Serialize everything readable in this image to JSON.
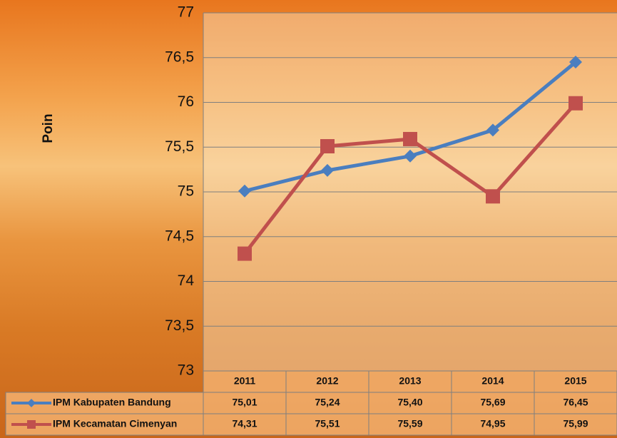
{
  "chart_data": {
    "type": "line",
    "y_label": "Poin",
    "categories": [
      "2011",
      "2012",
      "2013",
      "2014",
      "2015"
    ],
    "series": [
      {
        "name": "IPM Kabupaten Bandung",
        "color": "#4a7ebf",
        "marker": "diamond",
        "values": [
          75.01,
          75.24,
          75.4,
          75.69,
          76.45
        ],
        "value_labels": [
          "75,01",
          "75,24",
          "75,40",
          "75,69",
          "76,45"
        ]
      },
      {
        "name": "IPM Kecamatan Cimenyan",
        "color": "#c0504d",
        "marker": "square",
        "values": [
          74.31,
          75.51,
          75.59,
          74.95,
          75.99
        ],
        "value_labels": [
          "74,31",
          "75,51",
          "75,59",
          "74,95",
          "75,99"
        ]
      }
    ],
    "ylim": [
      73,
      77
    ],
    "yticks": [
      73,
      {
        "value": 73.5,
        "label": "73,5"
      },
      74,
      {
        "value": 74.5,
        "label": "74,5"
      },
      75,
      {
        "value": 75.5,
        "label": "75,5"
      },
      76,
      {
        "value": 76.5,
        "label": "76,5"
      },
      77
    ],
    "grid": true,
    "data_table": true
  }
}
